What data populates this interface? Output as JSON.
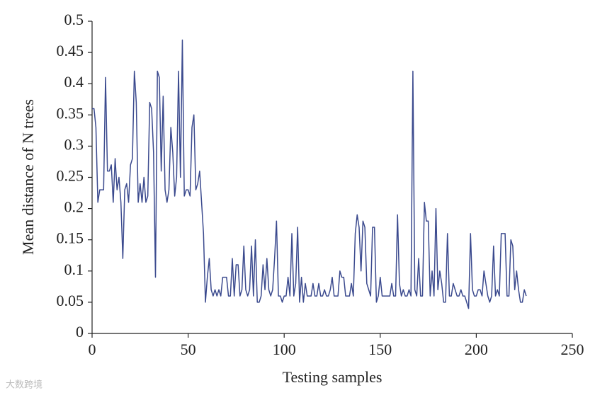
{
  "chart_data": {
    "type": "line",
    "xlabel": "Testing samples",
    "ylabel": "Mean distance of N trees",
    "watermark": "大数跨境",
    "xlim": [
      0,
      250
    ],
    "xticks": [
      0,
      50,
      100,
      150,
      200,
      250
    ],
    "ylim": [
      0,
      0.5
    ],
    "yticks": [
      0,
      0.05,
      0.1,
      0.15,
      0.2,
      0.25,
      0.3,
      0.35,
      0.4,
      0.45,
      0.5
    ],
    "x": [
      0,
      1,
      2,
      3,
      4,
      5,
      6,
      7,
      8,
      9,
      10,
      11,
      12,
      13,
      14,
      15,
      16,
      17,
      18,
      19,
      20,
      21,
      22,
      23,
      24,
      25,
      26,
      27,
      28,
      29,
      30,
      31,
      32,
      33,
      34,
      35,
      36,
      37,
      38,
      39,
      40,
      41,
      42,
      43,
      44,
      45,
      46,
      47,
      48,
      49,
      50,
      51,
      52,
      53,
      54,
      55,
      56,
      57,
      58,
      59,
      60,
      61,
      62,
      63,
      64,
      65,
      66,
      67,
      68,
      69,
      70,
      71,
      72,
      73,
      74,
      75,
      76,
      77,
      78,
      79,
      80,
      81,
      82,
      83,
      84,
      85,
      86,
      87,
      88,
      89,
      90,
      91,
      92,
      93,
      94,
      95,
      96,
      97,
      98,
      99,
      100,
      101,
      102,
      103,
      104,
      105,
      106,
      107,
      108,
      109,
      110,
      111,
      112,
      113,
      114,
      115,
      116,
      117,
      118,
      119,
      120,
      121,
      122,
      123,
      124,
      125,
      126,
      127,
      128,
      129,
      130,
      131,
      132,
      133,
      134,
      135,
      136,
      137,
      138,
      139,
      140,
      141,
      142,
      143,
      144,
      145,
      146,
      147,
      148,
      149,
      150,
      151,
      152,
      153,
      154,
      155,
      156,
      157,
      158,
      159,
      160,
      161,
      162,
      163,
      164,
      165,
      166,
      167,
      168,
      169,
      170,
      171,
      172,
      173,
      174,
      175,
      176,
      177,
      178,
      179,
      180,
      181,
      182,
      183,
      184,
      185,
      186,
      187,
      188,
      189,
      190,
      191,
      192,
      193,
      194,
      195,
      196,
      197,
      198,
      199,
      200,
      201,
      202,
      203,
      204,
      205,
      206,
      207,
      208,
      209,
      210,
      211,
      212,
      213,
      214,
      215,
      216,
      217,
      218,
      219,
      220,
      221,
      222,
      223,
      224,
      225,
      226
    ],
    "series": [
      {
        "name": "Mean distance",
        "color": "#3b4a8e",
        "values": [
          0.36,
          0.36,
          0.33,
          0.21,
          0.23,
          0.23,
          0.23,
          0.41,
          0.26,
          0.26,
          0.27,
          0.21,
          0.28,
          0.23,
          0.25,
          0.21,
          0.12,
          0.23,
          0.24,
          0.21,
          0.27,
          0.28,
          0.42,
          0.37,
          0.21,
          0.24,
          0.21,
          0.25,
          0.21,
          0.22,
          0.37,
          0.36,
          0.29,
          0.09,
          0.42,
          0.41,
          0.26,
          0.38,
          0.23,
          0.21,
          0.23,
          0.33,
          0.29,
          0.22,
          0.25,
          0.42,
          0.25,
          0.47,
          0.22,
          0.23,
          0.23,
          0.22,
          0.33,
          0.35,
          0.23,
          0.24,
          0.26,
          0.21,
          0.16,
          0.05,
          0.09,
          0.12,
          0.07,
          0.06,
          0.07,
          0.06,
          0.07,
          0.06,
          0.09,
          0.09,
          0.09,
          0.06,
          0.06,
          0.12,
          0.06,
          0.11,
          0.11,
          0.06,
          0.07,
          0.14,
          0.07,
          0.06,
          0.07,
          0.14,
          0.06,
          0.15,
          0.05,
          0.05,
          0.06,
          0.11,
          0.07,
          0.12,
          0.07,
          0.06,
          0.07,
          0.12,
          0.18,
          0.06,
          0.06,
          0.05,
          0.06,
          0.06,
          0.09,
          0.06,
          0.16,
          0.06,
          0.08,
          0.17,
          0.05,
          0.09,
          0.05,
          0.08,
          0.06,
          0.06,
          0.06,
          0.08,
          0.06,
          0.06,
          0.08,
          0.06,
          0.06,
          0.07,
          0.06,
          0.06,
          0.07,
          0.09,
          0.06,
          0.06,
          0.06,
          0.1,
          0.09,
          0.09,
          0.06,
          0.06,
          0.06,
          0.08,
          0.06,
          0.16,
          0.19,
          0.17,
          0.1,
          0.18,
          0.17,
          0.08,
          0.07,
          0.06,
          0.17,
          0.17,
          0.05,
          0.06,
          0.09,
          0.06,
          0.06,
          0.06,
          0.06,
          0.06,
          0.08,
          0.06,
          0.06,
          0.19,
          0.08,
          0.06,
          0.07,
          0.06,
          0.06,
          0.07,
          0.06,
          0.42,
          0.07,
          0.06,
          0.12,
          0.06,
          0.06,
          0.21,
          0.18,
          0.18,
          0.06,
          0.1,
          0.06,
          0.2,
          0.07,
          0.1,
          0.08,
          0.05,
          0.05,
          0.16,
          0.06,
          0.06,
          0.08,
          0.07,
          0.06,
          0.06,
          0.07,
          0.06,
          0.06,
          0.05,
          0.04,
          0.16,
          0.07,
          0.06,
          0.06,
          0.07,
          0.07,
          0.06,
          0.1,
          0.08,
          0.06,
          0.05,
          0.06,
          0.14,
          0.06,
          0.07,
          0.06,
          0.16,
          0.16,
          0.16,
          0.06,
          0.06,
          0.15,
          0.14,
          0.07,
          0.1,
          0.07,
          0.05,
          0.05,
          0.07,
          0.06
        ]
      }
    ]
  }
}
